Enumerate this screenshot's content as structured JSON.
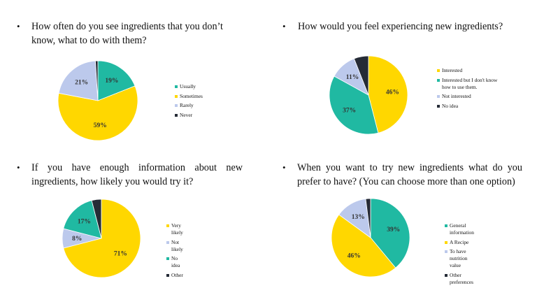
{
  "colors": {
    "yellow": "#FFD700",
    "teal": "#20B9A2",
    "lightblue": "#BCC9EC",
    "dark": "#252B36"
  },
  "chart_data": [
    {
      "type": "pie",
      "title": "How often do you see ingredients that you don’t know, what to do with them?",
      "title_lines": [
        "How often do you see ingredients that you don’t",
        "know, what to do with them?"
      ],
      "legend_position": "right",
      "slices": [
        {
          "label": "Usually",
          "value": 19,
          "color": "#20B9A2"
        },
        {
          "label": "Sometimes",
          "value": 59,
          "color": "#FFD700"
        },
        {
          "label": "Rarely",
          "value": 21,
          "color": "#BCC9EC"
        },
        {
          "label": "Never",
          "value": 1,
          "color": "#252B36"
        }
      ],
      "pct_labels": [
        "19%",
        "59%",
        "21%",
        ""
      ]
    },
    {
      "type": "pie",
      "title": "How would you feel experiencing new ingredients?",
      "title_lines": [
        "How would you feel experiencing new ingredients?"
      ],
      "legend_position": "right",
      "slices": [
        {
          "label": "Interested",
          "value": 46,
          "color": "#FFD700"
        },
        {
          "label": "Interested but I don't know how to use them.",
          "value": 37,
          "color": "#20B9A2"
        },
        {
          "label": "Not interested",
          "value": 11,
          "color": "#BCC9EC"
        },
        {
          "label": "No idea",
          "value": 6,
          "color": "#252B36"
        }
      ],
      "pct_labels": [
        "46%",
        "37%",
        "11%",
        ""
      ]
    },
    {
      "type": "pie",
      "title": "If you have enough information about new ingredients, how likely you would try it?",
      "title_lines": [
        "If you have enough information about new",
        "ingredients, how likely you would try it?"
      ],
      "legend_position": "right",
      "slices": [
        {
          "label": "Very likely",
          "value": 71,
          "color": "#FFD700"
        },
        {
          "label": "Not likely",
          "value": 8,
          "color": "#BCC9EC"
        },
        {
          "label": "No idea",
          "value": 17,
          "color": "#20B9A2"
        },
        {
          "label": "Other",
          "value": 4,
          "color": "#252B36"
        }
      ],
      "pct_labels": [
        "71%",
        "8%",
        "17%",
        ""
      ]
    },
    {
      "type": "pie",
      "title": "When you want to try new ingredients what do you prefer to have? (You can choose more than one option)",
      "title_lines": [
        "When you want to try new ingredients what do you",
        "prefer to have? (You can choose more than one option)"
      ],
      "legend_position": "right",
      "slices": [
        {
          "label": "General information",
          "value": 39,
          "color": "#20B9A2"
        },
        {
          "label": "A Recipe",
          "value": 46,
          "color": "#FFD700"
        },
        {
          "label": "To have nutrition value",
          "value": 13,
          "color": "#BCC9EC"
        },
        {
          "label": "Other preferences",
          "value": 2,
          "color": "#252B36"
        }
      ],
      "pct_labels": [
        "39%",
        "46%",
        "13%",
        ""
      ]
    }
  ]
}
